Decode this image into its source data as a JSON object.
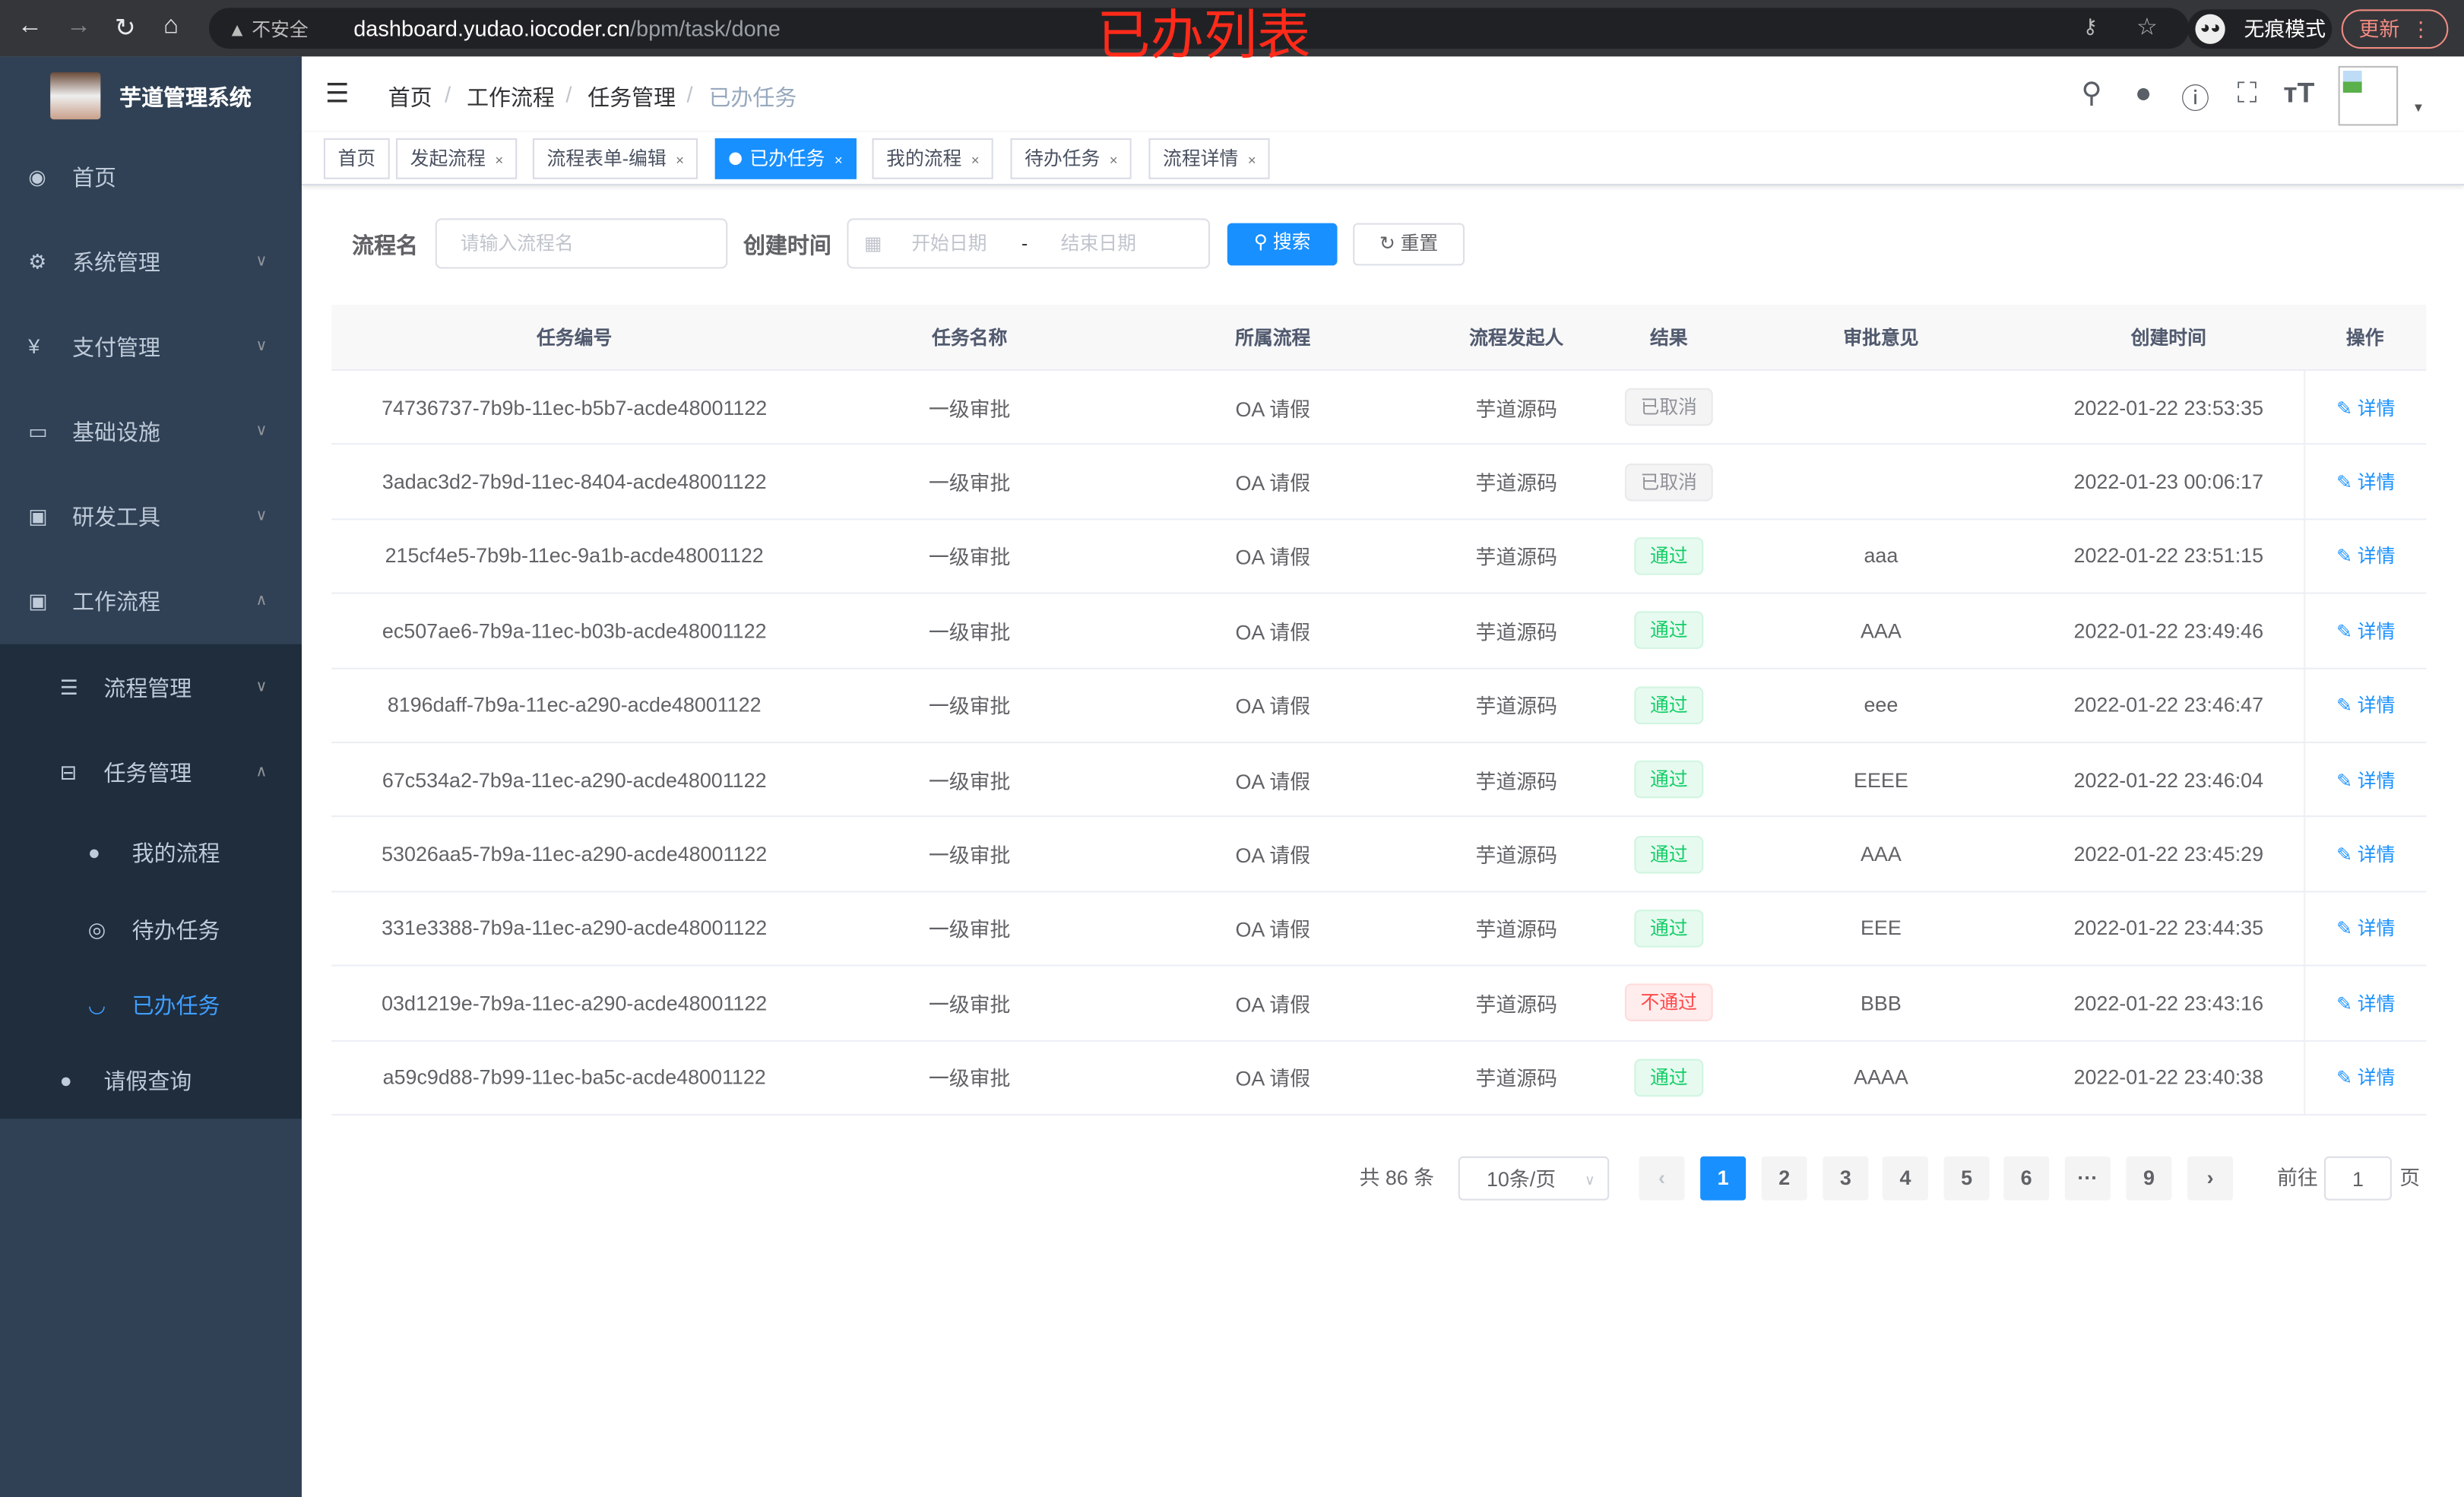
{
  "browser": {
    "security": "不安全",
    "url_host": "dashboard.yudao.iocoder.cn",
    "url_path": "/bpm/task/done",
    "incognito": "无痕模式",
    "update": "更新"
  },
  "annotation": "已办列表",
  "sidebar": {
    "title": "芋道管理系统",
    "items": [
      {
        "label": "首页",
        "icon": "dashboard-icon"
      },
      {
        "label": "系统管理",
        "icon": "gear-icon"
      },
      {
        "label": "支付管理",
        "icon": "yen-icon"
      },
      {
        "label": "基础设施",
        "icon": "monitor-icon"
      },
      {
        "label": "研发工具",
        "icon": "toolbox-icon"
      },
      {
        "label": "工作流程",
        "icon": "toolbox-icon"
      },
      {
        "label": "流程管理",
        "icon": "list-icon"
      },
      {
        "label": "任务管理",
        "icon": "tree-icon"
      },
      {
        "label": "我的流程",
        "icon": "user-icon"
      },
      {
        "label": "待办任务",
        "icon": "eye-icon"
      },
      {
        "label": "已办任务",
        "icon": "eye-closed-icon"
      },
      {
        "label": "请假查询",
        "icon": "user-icon"
      }
    ]
  },
  "breadcrumb": [
    "首页",
    "工作流程",
    "任务管理",
    "已办任务"
  ],
  "tags": [
    {
      "label": "首页"
    },
    {
      "label": "发起流程"
    },
    {
      "label": "流程表单-编辑"
    },
    {
      "label": "已办任务"
    },
    {
      "label": "我的流程"
    },
    {
      "label": "待办任务"
    },
    {
      "label": "流程详情"
    }
  ],
  "search": {
    "name_label": "流程名",
    "name_placeholder": "请输入流程名",
    "time_label": "创建时间",
    "start_placeholder": "开始日期",
    "sep": "-",
    "end_placeholder": "结束日期",
    "search_btn": "搜索",
    "reset_btn": "重置"
  },
  "table": {
    "columns": [
      "任务编号",
      "任务名称",
      "所属流程",
      "流程发起人",
      "结果",
      "审批意见",
      "创建时间",
      "操作"
    ],
    "action": "详情",
    "rows": [
      {
        "id": "74736737-7b9b-11ec-b5b7-acde48001122",
        "name": "一级审批",
        "process": "OA 请假",
        "starter": "芋道源码",
        "result": "已取消",
        "status": "cancel",
        "comment": "",
        "time": "2022-01-22 23:53:35"
      },
      {
        "id": "3adac3d2-7b9d-11ec-8404-acde48001122",
        "name": "一级审批",
        "process": "OA 请假",
        "starter": "芋道源码",
        "result": "已取消",
        "status": "cancel",
        "comment": "",
        "time": "2022-01-23 00:06:17"
      },
      {
        "id": "215cf4e5-7b9b-11ec-9a1b-acde48001122",
        "name": "一级审批",
        "process": "OA 请假",
        "starter": "芋道源码",
        "result": "通过",
        "status": "pass",
        "comment": "aaa",
        "time": "2022-01-22 23:51:15"
      },
      {
        "id": "ec507ae6-7b9a-11ec-b03b-acde48001122",
        "name": "一级审批",
        "process": "OA 请假",
        "starter": "芋道源码",
        "result": "通过",
        "status": "pass",
        "comment": "AAA",
        "time": "2022-01-22 23:49:46"
      },
      {
        "id": "8196daff-7b9a-11ec-a290-acde48001122",
        "name": "一级审批",
        "process": "OA 请假",
        "starter": "芋道源码",
        "result": "通过",
        "status": "pass",
        "comment": "eee",
        "time": "2022-01-22 23:46:47"
      },
      {
        "id": "67c534a2-7b9a-11ec-a290-acde48001122",
        "name": "一级审批",
        "process": "OA 请假",
        "starter": "芋道源码",
        "result": "通过",
        "status": "pass",
        "comment": "EEEE",
        "time": "2022-01-22 23:46:04"
      },
      {
        "id": "53026aa5-7b9a-11ec-a290-acde48001122",
        "name": "一级审批",
        "process": "OA 请假",
        "starter": "芋道源码",
        "result": "通过",
        "status": "pass",
        "comment": "AAA",
        "time": "2022-01-22 23:45:29"
      },
      {
        "id": "331e3388-7b9a-11ec-a290-acde48001122",
        "name": "一级审批",
        "process": "OA 请假",
        "starter": "芋道源码",
        "result": "通过",
        "status": "pass",
        "comment": "EEE",
        "time": "2022-01-22 23:44:35"
      },
      {
        "id": "03d1219e-7b9a-11ec-a290-acde48001122",
        "name": "一级审批",
        "process": "OA 请假",
        "starter": "芋道源码",
        "result": "不通过",
        "status": "reject",
        "comment": "BBB",
        "time": "2022-01-22 23:43:16"
      },
      {
        "id": "a59c9d88-7b99-11ec-ba5c-acde48001122",
        "name": "一级审批",
        "process": "OA 请假",
        "starter": "芋道源码",
        "result": "通过",
        "status": "pass",
        "comment": "AAAA",
        "time": "2022-01-22 23:40:38"
      }
    ]
  },
  "pagination": {
    "total": "共 86 条",
    "page_size": "10条/页",
    "pages": [
      "1",
      "2",
      "3",
      "4",
      "5",
      "6",
      "···",
      "9"
    ],
    "current": "1",
    "goto_label": "前往",
    "goto_value": "1",
    "goto_suffix": "页"
  },
  "colors": {
    "accent": "#1890ff",
    "sidebar": "#304156",
    "submenu": "#1f2d3d",
    "pass": "#13ce66",
    "reject": "#ff4949",
    "cancel": "#909399"
  }
}
